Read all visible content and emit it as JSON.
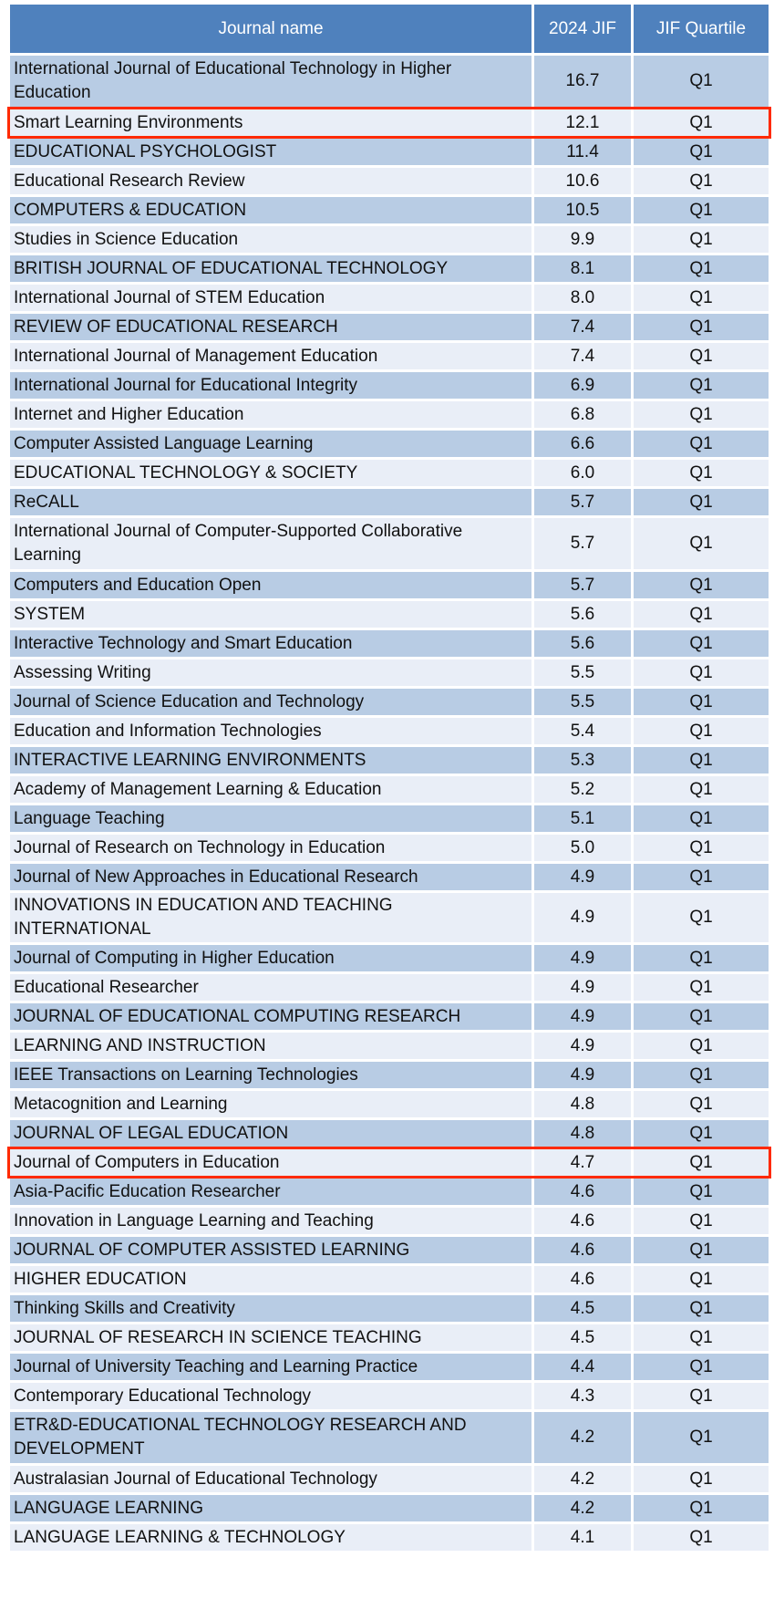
{
  "headers": {
    "name": "Journal name",
    "jif": "2024 JIF",
    "quartile": "JIF Quartile"
  },
  "highlight_color": "#ff2a00",
  "rows": [
    {
      "name": "International Journal of Educational Technology in Higher Education",
      "jif": "16.7",
      "q": "Q1"
    },
    {
      "name": "Smart Learning Environments",
      "jif": "12.1",
      "q": "Q1",
      "highlighted": true
    },
    {
      "name": "EDUCATIONAL PSYCHOLOGIST",
      "jif": "11.4",
      "q": "Q1"
    },
    {
      "name": "Educational Research Review",
      "jif": "10.6",
      "q": "Q1"
    },
    {
      "name": "COMPUTERS & EDUCATION",
      "jif": "10.5",
      "q": "Q1"
    },
    {
      "name": "Studies in Science Education",
      "jif": "9.9",
      "q": "Q1"
    },
    {
      "name": "BRITISH JOURNAL OF EDUCATIONAL TECHNOLOGY",
      "jif": "8.1",
      "q": "Q1"
    },
    {
      "name": "International Journal of STEM Education",
      "jif": "8.0",
      "q": "Q1"
    },
    {
      "name": "REVIEW OF EDUCATIONAL RESEARCH",
      "jif": "7.4",
      "q": "Q1"
    },
    {
      "name": "International Journal of Management Education",
      "jif": "7.4",
      "q": "Q1"
    },
    {
      "name": "International Journal for Educational Integrity",
      "jif": "6.9",
      "q": "Q1"
    },
    {
      "name": "Internet and Higher Education",
      "jif": "6.8",
      "q": "Q1"
    },
    {
      "name": "Computer Assisted Language Learning",
      "jif": "6.6",
      "q": "Q1"
    },
    {
      "name": "EDUCATIONAL TECHNOLOGY & SOCIETY",
      "jif": "6.0",
      "q": "Q1"
    },
    {
      "name": "ReCALL",
      "jif": "5.7",
      "q": "Q1"
    },
    {
      "name": "International Journal of Computer-Supported Collaborative Learning",
      "jif": "5.7",
      "q": "Q1"
    },
    {
      "name": "Computers and Education Open",
      "jif": "5.7",
      "q": "Q1"
    },
    {
      "name": "SYSTEM",
      "jif": "5.6",
      "q": "Q1"
    },
    {
      "name": "Interactive Technology and Smart Education",
      "jif": "5.6",
      "q": "Q1"
    },
    {
      "name": "Assessing Writing",
      "jif": "5.5",
      "q": "Q1"
    },
    {
      "name": "Journal of Science Education and Technology",
      "jif": "5.5",
      "q": "Q1"
    },
    {
      "name": "Education and Information Technologies",
      "jif": "5.4",
      "q": "Q1"
    },
    {
      "name": "INTERACTIVE LEARNING ENVIRONMENTS",
      "jif": "5.3",
      "q": "Q1"
    },
    {
      "name": "Academy of Management Learning & Education",
      "jif": "5.2",
      "q": "Q1"
    },
    {
      "name": "Language Teaching",
      "jif": "5.1",
      "q": "Q1"
    },
    {
      "name": "Journal of Research on Technology in Education",
      "jif": "5.0",
      "q": "Q1"
    },
    {
      "name": "Journal of New Approaches in Educational Research",
      "jif": "4.9",
      "q": "Q1"
    },
    {
      "name": "INNOVATIONS IN EDUCATION AND TEACHING INTERNATIONAL",
      "jif": "4.9",
      "q": "Q1"
    },
    {
      "name": "Journal of Computing in Higher Education",
      "jif": "4.9",
      "q": "Q1"
    },
    {
      "name": "Educational Researcher",
      "jif": "4.9",
      "q": "Q1"
    },
    {
      "name": "JOURNAL OF EDUCATIONAL COMPUTING RESEARCH",
      "jif": "4.9",
      "q": "Q1"
    },
    {
      "name": "LEARNING AND INSTRUCTION",
      "jif": "4.9",
      "q": "Q1"
    },
    {
      "name": "IEEE Transactions on Learning Technologies",
      "jif": "4.9",
      "q": "Q1"
    },
    {
      "name": "Metacognition and Learning",
      "jif": "4.8",
      "q": "Q1"
    },
    {
      "name": "JOURNAL OF LEGAL EDUCATION",
      "jif": "4.8",
      "q": "Q1"
    },
    {
      "name": "Journal of Computers in Education",
      "jif": "4.7",
      "q": "Q1",
      "highlighted": true
    },
    {
      "name": "Asia-Pacific Education Researcher",
      "jif": "4.6",
      "q": "Q1"
    },
    {
      "name": "Innovation in Language Learning and Teaching",
      "jif": "4.6",
      "q": "Q1"
    },
    {
      "name": "JOURNAL OF COMPUTER ASSISTED LEARNING",
      "jif": "4.6",
      "q": "Q1"
    },
    {
      "name": "HIGHER EDUCATION",
      "jif": "4.6",
      "q": "Q1"
    },
    {
      "name": "Thinking Skills and Creativity",
      "jif": "4.5",
      "q": "Q1"
    },
    {
      "name": "JOURNAL OF RESEARCH IN SCIENCE TEACHING",
      "jif": "4.5",
      "q": "Q1"
    },
    {
      "name": "Journal of University Teaching and Learning Practice",
      "jif": "4.4",
      "q": "Q1"
    },
    {
      "name": "Contemporary Educational Technology",
      "jif": "4.3",
      "q": "Q1"
    },
    {
      "name": "ETR&D-EDUCATIONAL TECHNOLOGY RESEARCH AND DEVELOPMENT",
      "jif": "4.2",
      "q": "Q1"
    },
    {
      "name": "Australasian Journal of Educational Technology",
      "jif": "4.2",
      "q": "Q1"
    },
    {
      "name": "LANGUAGE LEARNING",
      "jif": "4.2",
      "q": "Q1"
    },
    {
      "name": "LANGUAGE LEARNING & TECHNOLOGY",
      "jif": "4.1",
      "q": "Q1"
    }
  ]
}
